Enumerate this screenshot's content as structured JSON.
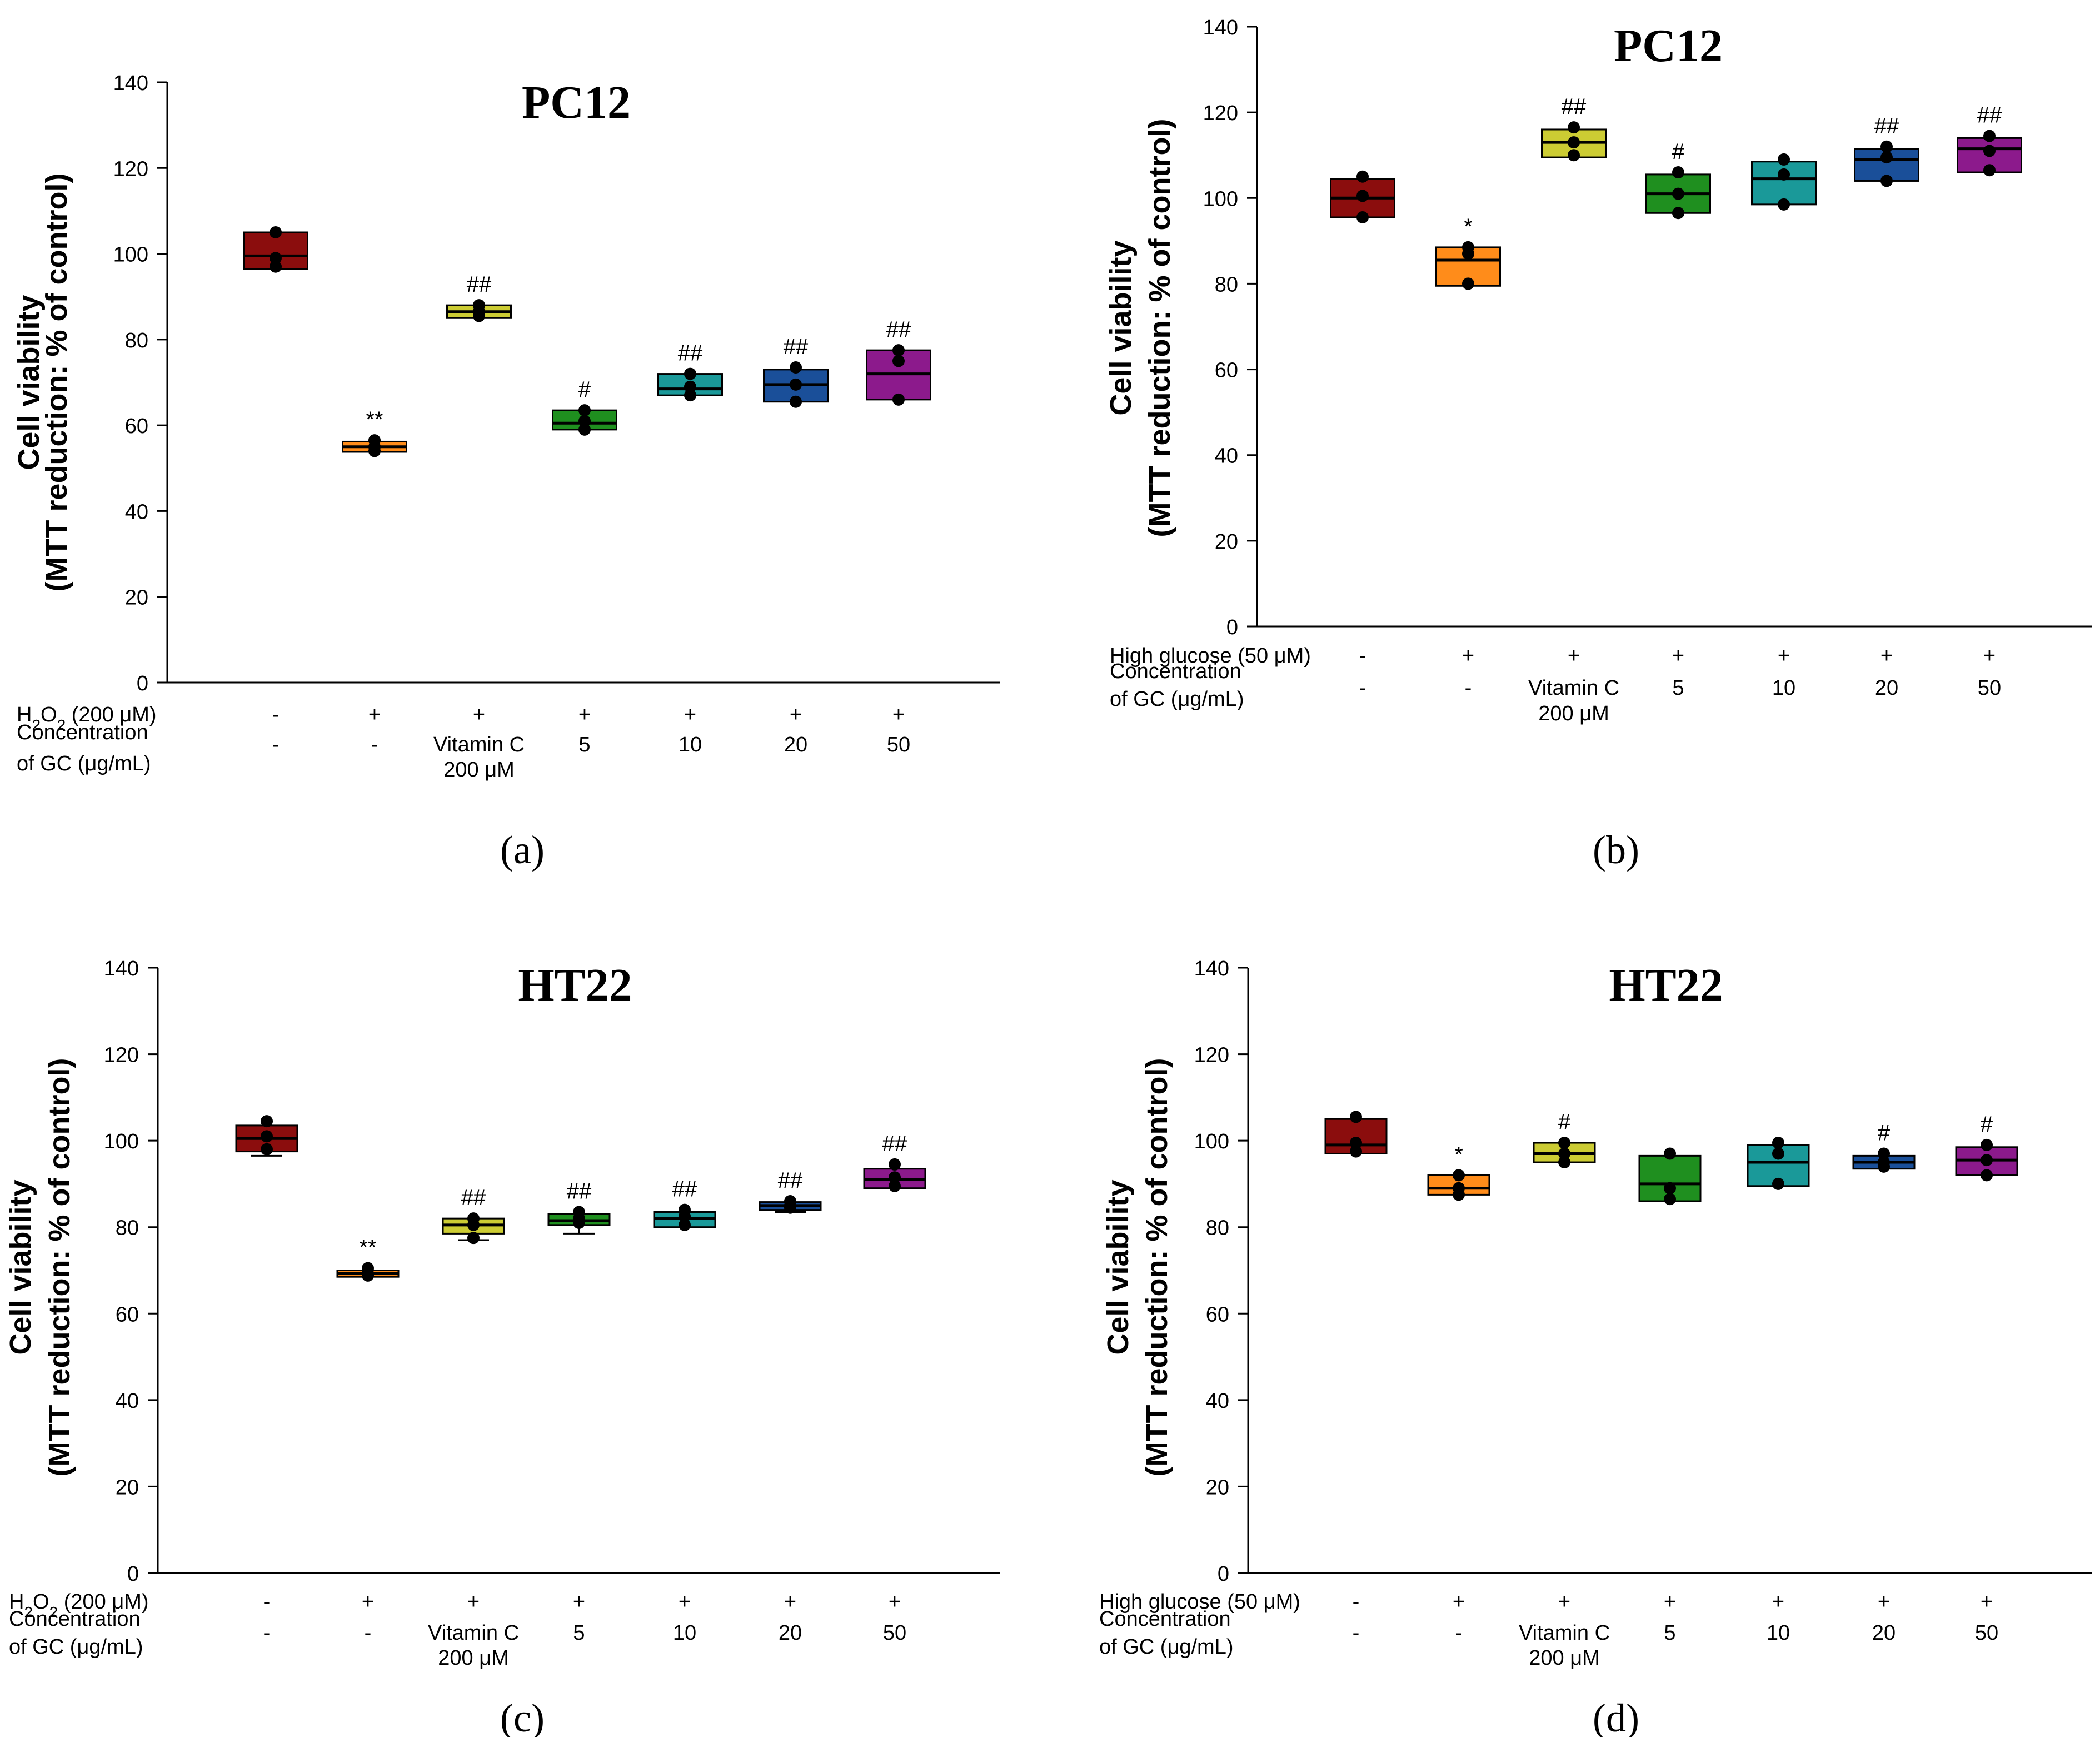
{
  "figure": {
    "panels": [
      {
        "id": "a",
        "caption": "(a)",
        "row_labels": {
          "treatment": [
            "H",
            "2",
            "O",
            "2",
            " (200 μM)"
          ],
          "concentration_line1": "Concentration",
          "concentration_line2": "of GC (μg/mL)"
        },
        "treatment_signs": [
          "-",
          "+",
          "+",
          "+",
          "+",
          "+",
          "+"
        ],
        "concentration_values": [
          "-",
          "-",
          "Vitamin C",
          "5",
          "10",
          "20",
          "50"
        ],
        "concentration_sub": [
          "",
          "",
          "200 μM",
          "",
          "",
          "",
          ""
        ]
      },
      {
        "id": "b",
        "caption": "(b)",
        "row_labels": {
          "treatment": [
            "High glucose (50 μM)"
          ],
          "concentration_line1": "Concentration",
          "concentration_line2": "of GC (μg/mL)"
        },
        "treatment_signs": [
          "-",
          "+",
          "+",
          "+",
          "+",
          "+",
          "+"
        ],
        "concentration_values": [
          "-",
          "-",
          "Vitamin C",
          "5",
          "10",
          "20",
          "50"
        ],
        "concentration_sub": [
          "",
          "",
          "200 μM",
          "",
          "",
          "",
          ""
        ]
      },
      {
        "id": "c",
        "caption": "(c)",
        "row_labels": {
          "treatment": [
            "H",
            "2",
            "O",
            "2",
            " (200 μM)"
          ],
          "concentration_line1": "Concentration",
          "concentration_line2": "of GC (μg/mL)"
        },
        "treatment_signs": [
          "-",
          "+",
          "+",
          "+",
          "+",
          "+",
          "+"
        ],
        "concentration_values": [
          "-",
          "-",
          "Vitamin C",
          "5",
          "10",
          "20",
          "50"
        ],
        "concentration_sub": [
          "",
          "",
          "200 μM",
          "",
          "",
          "",
          ""
        ]
      },
      {
        "id": "d",
        "caption": "(d)",
        "row_labels": {
          "treatment": [
            "High glucose (50 μM)"
          ],
          "concentration_line1": "Concentration",
          "concentration_line2": "of GC (μg/mL)"
        },
        "treatment_signs": [
          "-",
          "+",
          "+",
          "+",
          "+",
          "+",
          "+"
        ],
        "concentration_values": [
          "-",
          "-",
          "Vitamin C",
          "5",
          "10",
          "20",
          "50"
        ],
        "concentration_sub": [
          "",
          "",
          "200 μM",
          "",
          "",
          "",
          ""
        ]
      }
    ]
  },
  "chart_data": [
    {
      "type": "box",
      "title": "PC12",
      "ylabel_line1": "Cell viability",
      "ylabel_line2": "(MTT reduction: % of control)",
      "ylim": [
        0,
        140
      ],
      "yticks": [
        0,
        20,
        40,
        60,
        80,
        100,
        120,
        140
      ],
      "grid": false,
      "colors": [
        "#8b0d0d",
        "#ff8c1a",
        "#cccc33",
        "#1f8f1f",
        "#1a9999",
        "#1a4f99",
        "#8c1a8c"
      ],
      "boxes": [
        {
          "q1": 96.5,
          "median": 99.5,
          "q3": 105.0,
          "points": [
            97.0,
            99.0,
            105.0
          ],
          "mark": ""
        },
        {
          "q1": 53.8,
          "median": 55.0,
          "q3": 56.2,
          "points": [
            54.0,
            55.0,
            56.5
          ],
          "mark": "**"
        },
        {
          "q1": 85.0,
          "median": 86.5,
          "q3": 88.0,
          "points": [
            85.5,
            86.5,
            88.0
          ],
          "mark": "##"
        },
        {
          "q1": 59.0,
          "median": 60.5,
          "q3": 63.5,
          "points": [
            59.0,
            61.0,
            63.5
          ],
          "mark": "#"
        },
        {
          "q1": 67.0,
          "median": 68.5,
          "q3": 72.0,
          "points": [
            67.0,
            69.0,
            72.0
          ],
          "mark": "##"
        },
        {
          "q1": 65.5,
          "median": 69.5,
          "q3": 73.0,
          "points": [
            65.5,
            69.5,
            73.5
          ],
          "mark": "##"
        },
        {
          "q1": 66.0,
          "median": 72.0,
          "q3": 77.5,
          "points": [
            66.0,
            75.0,
            77.5
          ],
          "mark": "##"
        }
      ]
    },
    {
      "type": "box",
      "title": "PC12",
      "ylabel_line1": "Cell viability",
      "ylabel_line2": "(MTT reduction: % of control)",
      "ylim": [
        0,
        140
      ],
      "yticks": [
        0,
        20,
        40,
        60,
        80,
        100,
        120,
        140
      ],
      "grid": false,
      "colors": [
        "#8b0d0d",
        "#ff8c1a",
        "#cccc33",
        "#1f8f1f",
        "#1a9999",
        "#1a4f99",
        "#8c1a8c"
      ],
      "boxes": [
        {
          "q1": 95.5,
          "median": 100.0,
          "q3": 104.5,
          "points": [
            95.5,
            100.5,
            105.0
          ],
          "mark": ""
        },
        {
          "q1": 79.5,
          "median": 85.5,
          "q3": 88.5,
          "points": [
            80.0,
            87.0,
            88.5
          ],
          "mark": "*"
        },
        {
          "q1": 109.5,
          "median": 113.0,
          "q3": 116.0,
          "points": [
            110.0,
            113.0,
            116.5
          ],
          "mark": "##"
        },
        {
          "q1": 96.5,
          "median": 101.0,
          "q3": 105.5,
          "points": [
            96.5,
            101.0,
            106.0
          ],
          "mark": "#"
        },
        {
          "q1": 98.5,
          "median": 104.5,
          "q3": 108.5,
          "points": [
            98.5,
            105.5,
            109.0
          ],
          "mark": ""
        },
        {
          "q1": 104.0,
          "median": 109.0,
          "q3": 111.5,
          "points": [
            104.0,
            109.5,
            112.0
          ],
          "mark": "##"
        },
        {
          "q1": 106.0,
          "median": 111.5,
          "q3": 114.0,
          "points": [
            106.5,
            111.0,
            114.5
          ],
          "mark": "##"
        }
      ]
    },
    {
      "type": "box",
      "title": "HT22",
      "ylabel_line1": "Cell viability",
      "ylabel_line2": "(MTT reduction: % of control)",
      "ylim": [
        0,
        140
      ],
      "yticks": [
        0,
        20,
        40,
        60,
        80,
        100,
        120,
        140
      ],
      "grid": false,
      "colors": [
        "#8b0d0d",
        "#ff8c1a",
        "#cccc33",
        "#1f8f1f",
        "#1a9999",
        "#1a4f99",
        "#8c1a8c"
      ],
      "boxes": [
        {
          "q1": 97.5,
          "median": 100.5,
          "q3": 103.5,
          "whisker_low": 96.5,
          "points": [
            98.0,
            101.0,
            104.5
          ],
          "mark": ""
        },
        {
          "q1": 68.5,
          "median": 69.3,
          "q3": 70.0,
          "points": [
            68.8,
            69.3,
            70.5
          ],
          "mark": "**"
        },
        {
          "q1": 78.5,
          "median": 80.5,
          "q3": 82.0,
          "whisker_low": 77.0,
          "points": [
            77.5,
            80.5,
            82.0
          ],
          "mark": "##"
        },
        {
          "q1": 80.5,
          "median": 81.5,
          "q3": 83.0,
          "whisker_low": 78.5,
          "points": [
            81.0,
            82.0,
            83.5
          ],
          "mark": "##"
        },
        {
          "q1": 80.0,
          "median": 82.0,
          "q3": 83.5,
          "points": [
            80.5,
            82.5,
            84.0
          ],
          "mark": "##"
        },
        {
          "q1": 84.0,
          "median": 85.0,
          "q3": 85.8,
          "whisker_low": 83.5,
          "points": [
            84.5,
            85.0,
            86.0
          ],
          "mark": "##"
        },
        {
          "q1": 89.0,
          "median": 91.0,
          "q3": 93.5,
          "points": [
            89.5,
            91.5,
            94.5
          ],
          "mark": "##"
        }
      ]
    },
    {
      "type": "box",
      "title": "HT22",
      "ylabel_line1": "Cell viability",
      "ylabel_line2": "(MTT reduction: % of control)",
      "ylim": [
        0,
        140
      ],
      "yticks": [
        0,
        20,
        40,
        60,
        80,
        100,
        120,
        140
      ],
      "grid": false,
      "colors": [
        "#8b0d0d",
        "#ff8c1a",
        "#cccc33",
        "#1f8f1f",
        "#1a9999",
        "#1a4f99",
        "#8c1a8c"
      ],
      "boxes": [
        {
          "q1": 97.0,
          "median": 99.0,
          "q3": 105.0,
          "points": [
            97.5,
            99.5,
            105.5
          ],
          "mark": ""
        },
        {
          "q1": 87.5,
          "median": 89.0,
          "q3": 92.0,
          "points": [
            87.5,
            89.0,
            92.0
          ],
          "mark": "*"
        },
        {
          "q1": 95.0,
          "median": 97.0,
          "q3": 99.5,
          "points": [
            95.0,
            97.0,
            99.5
          ],
          "mark": "#"
        },
        {
          "q1": 86.0,
          "median": 90.0,
          "q3": 96.5,
          "points": [
            86.5,
            89.0,
            97.0
          ],
          "mark": ""
        },
        {
          "q1": 89.5,
          "median": 95.0,
          "q3": 99.0,
          "points": [
            90.0,
            97.0,
            99.5
          ],
          "mark": ""
        },
        {
          "q1": 93.5,
          "median": 95.0,
          "q3": 96.5,
          "points": [
            94.0,
            95.0,
            97.0
          ],
          "mark": "#"
        },
        {
          "q1": 92.0,
          "median": 95.5,
          "q3": 98.5,
          "points": [
            92.0,
            95.5,
            99.0
          ],
          "mark": "#"
        }
      ]
    }
  ]
}
